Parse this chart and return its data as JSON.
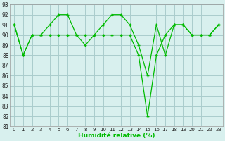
{
  "line1_x": [
    0,
    1,
    2,
    3,
    4,
    5,
    6,
    7,
    8,
    9,
    10,
    11,
    12,
    13,
    14,
    15,
    16,
    17,
    18,
    19,
    20,
    21,
    22,
    23
  ],
  "line1_y": [
    91,
    88,
    90,
    90,
    91,
    92,
    92,
    90,
    89,
    90,
    91,
    92,
    92,
    91,
    89,
    86,
    91,
    88,
    91,
    91,
    90,
    90,
    90,
    91
  ],
  "line2_x": [
    0,
    1,
    2,
    3,
    4,
    5,
    6,
    7,
    8,
    9,
    10,
    11,
    12,
    13,
    14,
    15,
    16,
    17,
    18,
    19,
    20,
    21,
    22,
    23
  ],
  "line2_y": [
    91,
    88,
    90,
    90,
    90,
    90,
    90,
    90,
    90,
    90,
    90,
    90,
    90,
    90,
    88,
    82,
    88,
    90,
    91,
    91,
    90,
    90,
    90,
    91
  ],
  "line_color": "#00bb00",
  "bg_color": "#d8f0ee",
  "grid_color": "#aacccc",
  "xlabel": "Humidité relative (%)",
  "xlim": [
    -0.5,
    23.5
  ],
  "ylim": [
    81,
    93
  ],
  "yticks": [
    81,
    82,
    83,
    84,
    85,
    86,
    87,
    88,
    89,
    90,
    91,
    92,
    93
  ],
  "xticks": [
    0,
    1,
    2,
    3,
    4,
    5,
    6,
    7,
    8,
    9,
    10,
    11,
    12,
    13,
    14,
    15,
    16,
    17,
    18,
    19,
    20,
    21,
    22,
    23
  ]
}
